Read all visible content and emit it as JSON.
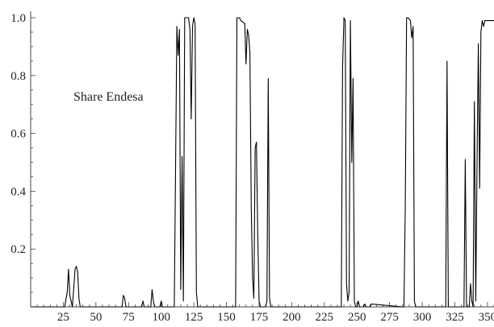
{
  "chart_data": {
    "type": "line",
    "title": "",
    "xlabel": "",
    "ylabel": "",
    "xlim": [
      0,
      355
    ],
    "ylim": [
      0,
      1.0
    ],
    "grid": false,
    "legend": "none",
    "annotation": "Share Endesa",
    "x_ticks": [
      25,
      50,
      75,
      100,
      125,
      150,
      175,
      200,
      225,
      250,
      275,
      300,
      325,
      350
    ],
    "x_tick_labels": [
      "25",
      "50",
      "75",
      "100",
      "125",
      "150",
      "175",
      "200",
      "225",
      "250",
      "275",
      "300",
      "325",
      "350"
    ],
    "y_ticks": [
      0.2,
      0.4,
      0.6,
      0.8,
      1.0
    ],
    "y_tick_labels": [
      "0.2",
      "0.4",
      "0.6",
      "0.8",
      "1.0"
    ],
    "line_color": "#000000",
    "series": [
      {
        "x": [
          0,
          26,
          28,
          29,
          30,
          31,
          32,
          34,
          35,
          36,
          37,
          38,
          40,
          55,
          70,
          71,
          72,
          73,
          85,
          86,
          87,
          92,
          93,
          94,
          95,
          99,
          100,
          101,
          110,
          111,
          112,
          113,
          114,
          115,
          116,
          117,
          118,
          120,
          121,
          122,
          123,
          124,
          125,
          126,
          127,
          128,
          157,
          158,
          160,
          161,
          164,
          165,
          166,
          167,
          168,
          169,
          170,
          171,
          172,
          173,
          174,
          175,
          176,
          177,
          178,
          180,
          181,
          182,
          183,
          184,
          185,
          238,
          239,
          240,
          241,
          242,
          243,
          244,
          245,
          246,
          247,
          248,
          249,
          250,
          251,
          252,
          255,
          256,
          257,
          260,
          261,
          285,
          286,
          287,
          288,
          289,
          291,
          292,
          293,
          294,
          295,
          296,
          318,
          319,
          320,
          332,
          333,
          334,
          336,
          337,
          338,
          339,
          340,
          341,
          342,
          343,
          344,
          345,
          346,
          347,
          348,
          349,
          350,
          352,
          355
        ],
        "y": [
          0,
          0,
          0.05,
          0.13,
          0.04,
          0.02,
          0,
          0.13,
          0.14,
          0.12,
          0.03,
          0,
          0,
          0,
          0,
          0.04,
          0.03,
          0,
          0,
          0.02,
          0,
          0,
          0.06,
          0.02,
          0,
          0,
          0.02,
          0,
          0,
          0.48,
          0.97,
          0.87,
          0.96,
          0.06,
          0.52,
          0.02,
          1.0,
          1.0,
          1.0,
          0.96,
          0.65,
          0.97,
          1.0,
          0.98,
          0.05,
          0,
          0,
          1.0,
          1.0,
          0.99,
          0.98,
          0.84,
          0.96,
          0.94,
          0.88,
          0.34,
          0.1,
          0.03,
          0.55,
          0.57,
          0.25,
          0.02,
          0,
          0,
          0,
          0,
          0.02,
          0.79,
          0.03,
          0,
          0,
          0,
          0.83,
          1.0,
          0.99,
          0.08,
          0.02,
          0.05,
          0.99,
          0.5,
          0.79,
          0.02,
          0,
          0,
          0.02,
          0,
          0,
          0.01,
          0,
          0,
          0.01,
          0,
          0,
          0.35,
          1.0,
          1.0,
          0.99,
          0.93,
          0.97,
          0.02,
          0,
          0,
          0,
          0.85,
          0,
          0,
          0.51,
          0,
          0,
          0.08,
          0.02,
          0,
          0.71,
          0.02,
          0.5,
          0.91,
          0.41,
          0.95,
          0.99,
          0.97,
          0.99,
          0.99,
          0.99,
          0.99,
          0.99
        ]
      }
    ]
  }
}
